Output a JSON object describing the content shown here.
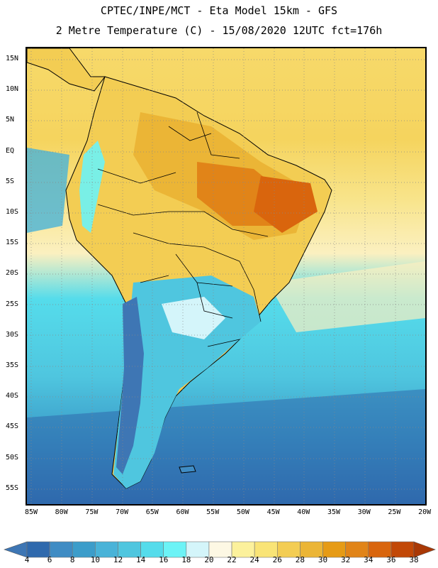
{
  "title_line1": "CPTEC/INPE/MCT -  Eta Model 15km - GFS",
  "title_line2": "2 Metre Temperature (C) - 15/08/2020 12UTC fct=176h",
  "lat_labels": [
    "15N",
    "10N",
    "5N",
    "EQ",
    "5S",
    "10S",
    "15S",
    "20S",
    "25S",
    "30S",
    "35S",
    "40S",
    "45S",
    "50S",
    "55S"
  ],
  "lon_labels": [
    "85W",
    "80W",
    "75W",
    "70W",
    "65W",
    "60W",
    "55W",
    "50W",
    "45W",
    "40W",
    "35W",
    "30W",
    "25W",
    "20W"
  ],
  "colorbar": {
    "ticks": [
      "4",
      "6",
      "8",
      "10",
      "12",
      "14",
      "16",
      "18",
      "20",
      "22",
      "24",
      "26",
      "28",
      "30",
      "32",
      "34",
      "36",
      "38"
    ],
    "colors": [
      "#3e76b4",
      "#2f69ad",
      "#3f8cc4",
      "#3c9dca",
      "#49b3d8",
      "#4fc6df",
      "#55dceb",
      "#6cf3f6",
      "#d4f5fa",
      "#fdf8e4",
      "#fcf19c",
      "#f9e476",
      "#f3cd53",
      "#ebb536",
      "#e69b15",
      "#e18418",
      "#d9650d",
      "#c24807",
      "#a93805"
    ]
  }
}
